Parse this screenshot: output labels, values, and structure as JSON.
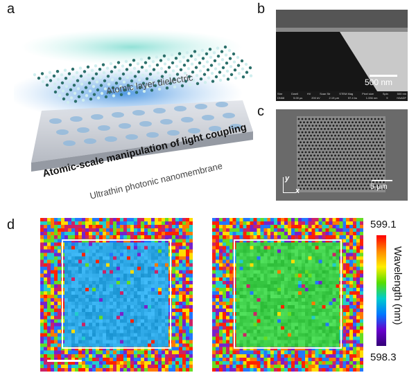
{
  "panels": {
    "a": {
      "label": "a",
      "layer_top": "Atomic layer dielectric",
      "headline": "Atomic-scale manipulation of light coupling",
      "layer_bottom": "Ultrathin photonic nanomembrane"
    },
    "b": {
      "label": "b",
      "scale_bar": "500 nm",
      "info_headers": [
        "Stre",
        "Dwell",
        "HV",
        "Scan Str",
        "STEM Mag",
        "Pixel size",
        "Spin",
        "500 nm"
      ],
      "info_values": [
        "DN68",
        "5.00 µs",
        "200 kV",
        "2.19 µm",
        "57.4 ks",
        "1.336 nm",
        "9",
        "HAADF"
      ]
    },
    "c": {
      "label": "c",
      "scale_bar": "5 µm",
      "axis_y": "y",
      "axis_x": "x"
    },
    "d": {
      "label": "d",
      "colorbar_max": "599.1",
      "colorbar_min": "598.3",
      "colorbar_title": "Wavelength (nm)"
    }
  },
  "colors": {
    "colorbar_gradient": [
      "#ff0000",
      "#ff8800",
      "#ffee00",
      "#55dd00",
      "#00cccc",
      "#0077ff",
      "#6600cc",
      "#330077"
    ],
    "map_left_center": "#2ea8e6",
    "map_right_center": "#3fcf4a",
    "water_glow": "#9fe0dc",
    "blue_glow": "#4aa0e8"
  }
}
